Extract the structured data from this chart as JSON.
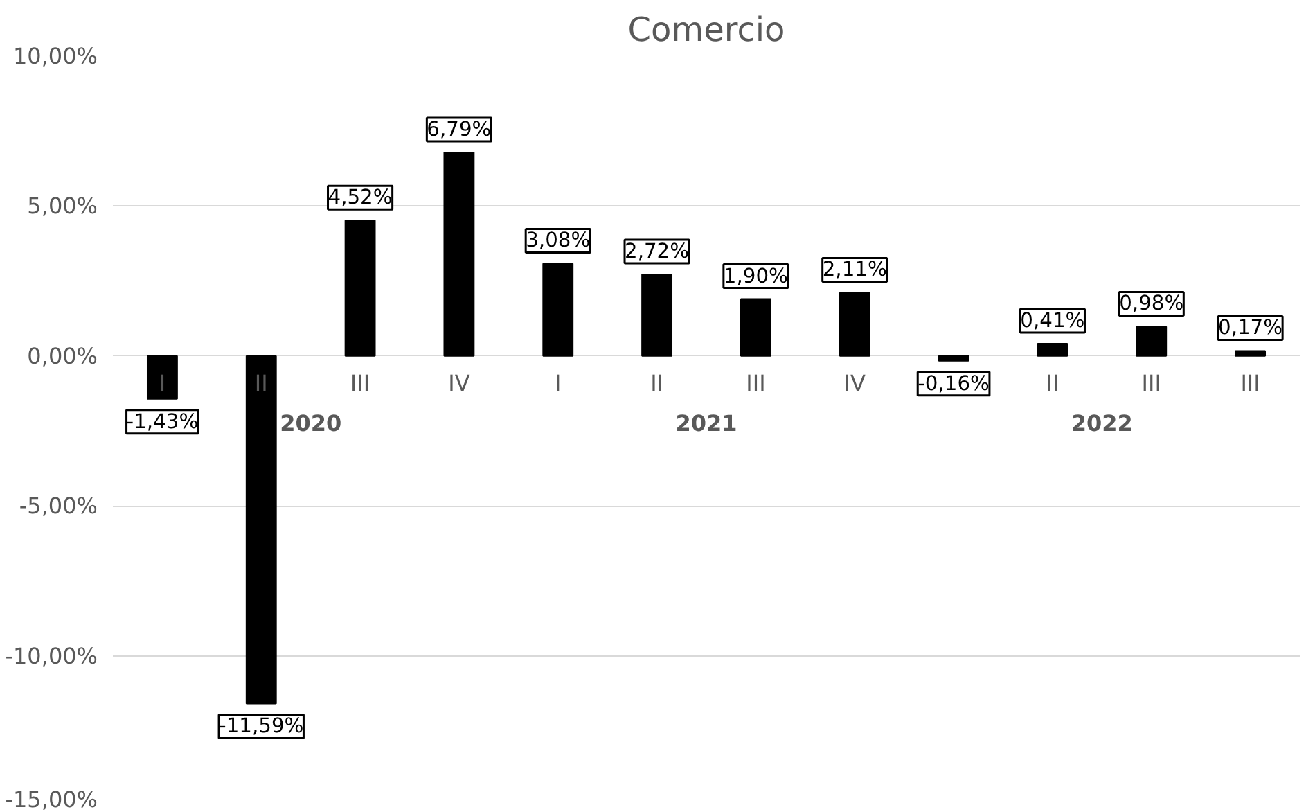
{
  "chart_data": {
    "type": "bar",
    "title": "Comercio",
    "categories": [
      "I",
      "II",
      "III",
      "IV",
      "I",
      "II",
      "III",
      "IV",
      null,
      "II",
      "III",
      "III"
    ],
    "values": [
      -1.43,
      -11.59,
      4.52,
      6.79,
      3.08,
      2.72,
      1.9,
      2.11,
      -0.16,
      0.41,
      0.98,
      0.17
    ],
    "value_labels": [
      "-1,43%",
      "-11,59%",
      "4,52%",
      "6,79%",
      "3,08%",
      "2,72%",
      "1,90%",
      "2,11%",
      "-0,16%",
      "0,41%",
      "0,98%",
      "0,17%"
    ],
    "color": "#000000",
    "ylim": [
      -15,
      10
    ],
    "yticks": [
      {
        "value": -15,
        "label": "-15,00%"
      },
      {
        "value": -10,
        "label": "-10,00%"
      },
      {
        "value": -5,
        "label": "-5,00%"
      },
      {
        "value": 0,
        "label": "0,00%"
      },
      {
        "value": 5,
        "label": "5,00%"
      },
      {
        "value": 10,
        "label": "10,00%"
      }
    ],
    "annotations": [
      "2020",
      "2021",
      "2022"
    ],
    "grid": "y"
  }
}
